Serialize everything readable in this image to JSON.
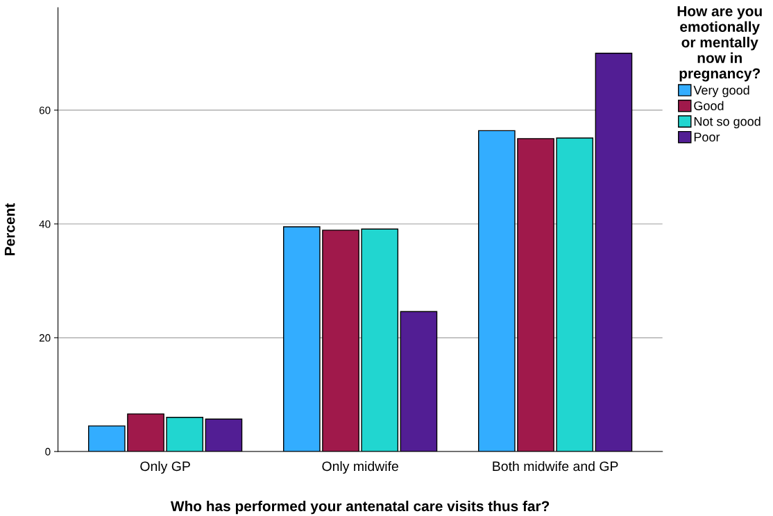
{
  "chart_data": {
    "type": "bar",
    "xlabel": "Who has performed your antenatal care visits thus far?",
    "ylabel": "Percent",
    "legend_title": "How are you\nemotionally\nor mentally\nnow in\npregnancy?",
    "categories": [
      "Only GP",
      "Only midwife",
      "Both midwife and GP"
    ],
    "series": [
      {
        "name": "Very good",
        "color": "#33adff",
        "values": [
          4.5,
          39.5,
          56.4
        ]
      },
      {
        "name": "Good",
        "color": "#a0194b",
        "values": [
          6.6,
          38.9,
          55.0
        ]
      },
      {
        "name": "Not so good",
        "color": "#21d6d0",
        "values": [
          6.0,
          39.1,
          55.1
        ]
      },
      {
        "name": "Poor",
        "color": "#521e94",
        "values": [
          5.7,
          24.6,
          70.0
        ]
      }
    ],
    "ylim": [
      0,
      78
    ],
    "yticks": [
      0,
      20,
      40,
      60
    ],
    "grid": "y",
    "legend": "top right"
  }
}
